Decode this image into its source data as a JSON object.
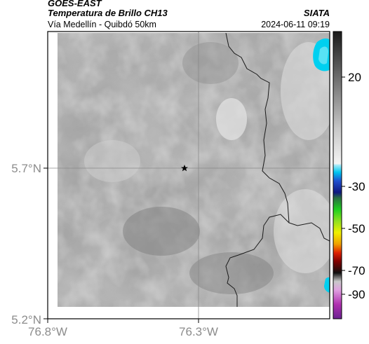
{
  "header": {
    "satellite": "GOES-EAST",
    "product": "Temperatura de Brillo CH13",
    "location": "Vía Medellín - Quibdó 50km",
    "agency": "SIATA",
    "datetime": "2024-06-11 09:19"
  },
  "map": {
    "lon_ticks": [
      "76.8°W",
      "76.3°W"
    ],
    "lat_ticks": [
      "5.7°N",
      "5.2°N"
    ],
    "marker_icon": "star-icon"
  },
  "colorbar": {
    "labels": [
      "20",
      "-30",
      "-50",
      "-70",
      "-90"
    ],
    "colors": {
      "warm_gray": "#d8d8d8",
      "cold_cyan": "#00d0f0",
      "blue": "#1020a0",
      "green": "#20c020",
      "yellow": "#f0f000",
      "red": "#e02000",
      "magenta": "#c040c0"
    }
  }
}
